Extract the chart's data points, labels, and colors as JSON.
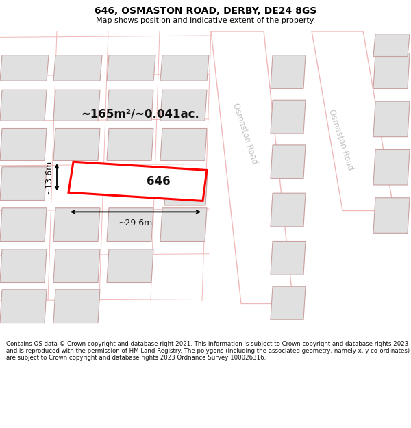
{
  "title": "646, OSMASTON ROAD, DERBY, DE24 8GS",
  "subtitle": "Map shows position and indicative extent of the property.",
  "footer": "Contains OS data © Crown copyright and database right 2021. This information is subject to Crown copyright and database rights 2023 and is reproduced with the permission of HM Land Registry. The polygons (including the associated geometry, namely x, y co-ordinates) are subject to Crown copyright and database rights 2023 Ordnance Survey 100026316.",
  "map_bg": "#f0f0f0",
  "title_color": "#000000",
  "road_color_light": "#f0b8b8",
  "road_fill": "#ffffff",
  "building_fill": "#e0e0e0",
  "building_edge": "#c8a0a0",
  "highlight_fill": "#ffffff",
  "highlight_edge": "#ff0000",
  "highlight_lw": 2.2,
  "road_label_color": "#c0c0c0",
  "area_label": "~165m²/~0.041ac.",
  "dim_label_w": "~29.6m",
  "dim_label_h": "~13.6m",
  "plot_label": "646",
  "road1_label": "Osmaston Road",
  "road2_label": "Osmaston Road"
}
